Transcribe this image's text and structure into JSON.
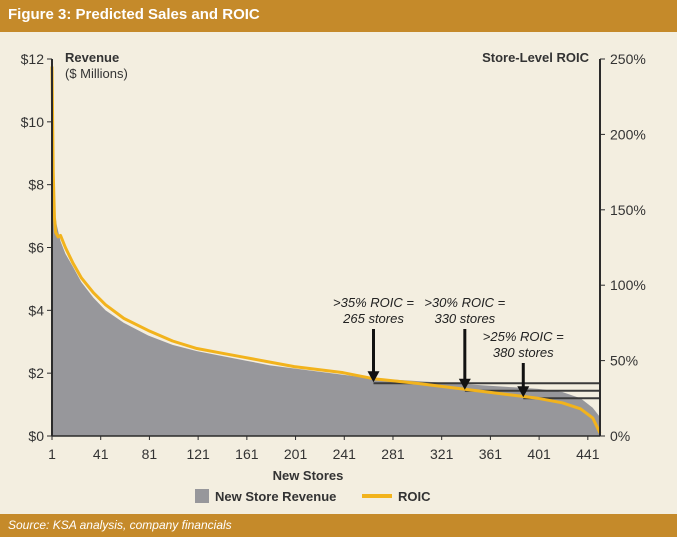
{
  "header": {
    "title": "Figure 3: Predicted Sales and ROIC"
  },
  "footer": {
    "source": "Source: KSA analysis, company financials"
  },
  "colors": {
    "background": "#f3eee0",
    "band": "#c58a2a",
    "revenue_fill": "#97979b",
    "roic_line": "#f2b31c",
    "threshold_line": "#3a3a3a"
  },
  "chart_data": {
    "type": "area",
    "title": "",
    "xlabel": "New Stores",
    "ylabel_left": {
      "title": "Revenue",
      "subtitle": "($ Millions)"
    },
    "ylabel_right": "Store-Level ROIC",
    "x_range": [
      1,
      451
    ],
    "xticks": [
      {
        "v": 1,
        "label": "1"
      },
      {
        "v": 41,
        "label": "41"
      },
      {
        "v": 81,
        "label": "81"
      },
      {
        "v": 121,
        "label": "121"
      },
      {
        "v": 161,
        "label": "161"
      },
      {
        "v": 201,
        "label": "201"
      },
      {
        "v": 241,
        "label": "241"
      },
      {
        "v": 281,
        "label": "281"
      },
      {
        "v": 321,
        "label": "321"
      },
      {
        "v": 361,
        "label": "361"
      },
      {
        "v": 401,
        "label": "401"
      },
      {
        "v": 441,
        "label": "441"
      }
    ],
    "ylim_left": [
      0,
      12
    ],
    "yticks_left": [
      {
        "v": 0,
        "label": "$0"
      },
      {
        "v": 2,
        "label": "$2"
      },
      {
        "v": 4,
        "label": "$4"
      },
      {
        "v": 6,
        "label": "$6"
      },
      {
        "v": 8,
        "label": "$8"
      },
      {
        "v": 10,
        "label": "$10"
      },
      {
        "v": 12,
        "label": "$12"
      }
    ],
    "ylim_right": [
      0,
      250
    ],
    "yticks_right": [
      {
        "v": 0,
        "label": "0%"
      },
      {
        "v": 50,
        "label": "50%"
      },
      {
        "v": 100,
        "label": "100%"
      },
      {
        "v": 150,
        "label": "150%"
      },
      {
        "v": 200,
        "label": "200%"
      },
      {
        "v": 250,
        "label": "250%"
      }
    ],
    "series": [
      {
        "name": "New Store Revenue",
        "kind": "area",
        "axis": "left",
        "x": [
          1,
          2,
          3,
          5,
          8,
          12,
          18,
          25,
          35,
          45,
          60,
          80,
          100,
          120,
          140,
          160,
          180,
          200,
          220,
          240,
          260,
          280,
          300,
          320,
          340,
          360,
          380,
          400,
          420,
          435,
          445,
          451
        ],
        "values": [
          10.8,
          8.4,
          7.2,
          6.7,
          6.2,
          5.8,
          5.4,
          4.9,
          4.4,
          4.0,
          3.6,
          3.2,
          2.9,
          2.7,
          2.55,
          2.4,
          2.25,
          2.15,
          2.05,
          1.95,
          1.85,
          1.8,
          1.75,
          1.7,
          1.65,
          1.6,
          1.55,
          1.5,
          1.4,
          1.2,
          0.9,
          0.6
        ]
      },
      {
        "name": "ROIC",
        "kind": "line",
        "axis": "right",
        "x": [
          1,
          2,
          3,
          4,
          6,
          8,
          12,
          18,
          25,
          35,
          45,
          60,
          80,
          100,
          120,
          140,
          160,
          180,
          200,
          220,
          240,
          265,
          300,
          330,
          360,
          380,
          400,
          420,
          435,
          445,
          451
        ],
        "values": [
          245,
          175,
          145,
          135,
          132,
          133,
          125,
          115,
          105,
          95,
          87,
          78,
          70,
          63,
          58,
          55,
          52,
          49,
          46,
          44,
          42,
          38,
          35,
          32,
          29,
          27,
          25,
          22,
          18,
          12,
          2
        ]
      }
    ],
    "annotations": [
      {
        "line1": ">35% ROIC =",
        "line2": "265 stores",
        "x": 265,
        "roic": 35
      },
      {
        "line1": ">30% ROIC =",
        "line2": "330 stores",
        "x": 340,
        "roic": 30
      },
      {
        "line1": ">25% ROIC =",
        "line2": "380 stores",
        "x": 388,
        "roic": 25
      }
    ],
    "legend": {
      "position": "bottom",
      "items": [
        {
          "label": "New Store Revenue",
          "swatch": "box"
        },
        {
          "label": "ROIC",
          "swatch": "line"
        }
      ]
    },
    "grid": false
  }
}
